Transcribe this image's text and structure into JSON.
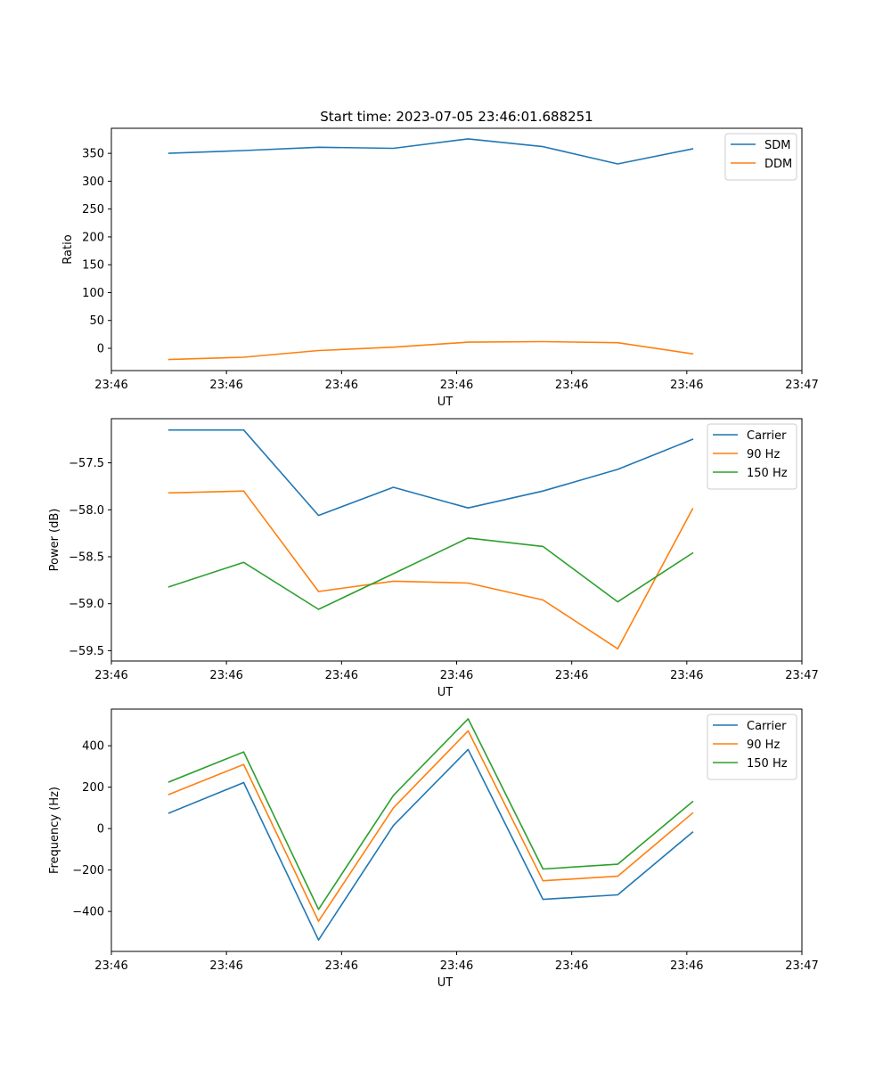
{
  "figure_title": "Start time: 2023-07-05 23:46:01.688251",
  "colors": {
    "blue": "#1f77b4",
    "orange": "#ff7f0e",
    "green": "#2ca02c"
  },
  "chart_data": [
    {
      "type": "line",
      "title": "Start time: 2023-07-05 23:46:01.688251",
      "xlabel": "UT",
      "ylabel": "Ratio",
      "x": [
        0.5,
        1.15,
        1.8,
        2.45,
        3.1,
        3.75,
        4.4,
        5.05
      ],
      "xlim": [
        0,
        6
      ],
      "xticks": [
        0,
        1,
        2,
        3,
        4,
        5,
        6
      ],
      "xtick_labels": [
        "23:46",
        "23:46",
        "23:46",
        "23:46",
        "23:46",
        "23:46",
        "23:47"
      ],
      "ylim": [
        -40,
        395
      ],
      "yticks": [
        0,
        50,
        100,
        150,
        200,
        250,
        300,
        350
      ],
      "ytick_labels": [
        "0",
        "50",
        "100",
        "150",
        "200",
        "250",
        "300",
        "350"
      ],
      "legend_position": "top-right",
      "series": [
        {
          "name": "SDM",
          "color": "#1f77b4",
          "values": [
            350,
            355,
            361,
            359,
            376,
            362,
            331,
            358
          ]
        },
        {
          "name": "DDM",
          "color": "#ff7f0e",
          "values": [
            -20,
            -16,
            -4,
            2,
            11,
            12,
            10,
            -10
          ]
        }
      ]
    },
    {
      "type": "line",
      "title": "",
      "xlabel": "UT",
      "ylabel": "Power (dB)",
      "x": [
        0.5,
        1.15,
        1.8,
        2.45,
        3.1,
        3.75,
        4.4,
        5.05
      ],
      "xlim": [
        0,
        6
      ],
      "xticks": [
        0,
        1,
        2,
        3,
        4,
        5,
        6
      ],
      "xtick_labels": [
        "23:46",
        "23:46",
        "23:46",
        "23:46",
        "23:46",
        "23:46",
        "23:47"
      ],
      "ylim": [
        -59.61,
        -57.03
      ],
      "yticks": [
        -57.5,
        -58.0,
        -58.5,
        -59.0,
        -59.5
      ],
      "ytick_labels": [
        "−57.5",
        "−58.0",
        "−58.5",
        "−59.0",
        "−59.5"
      ],
      "legend_position": "top-right",
      "series": [
        {
          "name": "Carrier",
          "color": "#1f77b4",
          "values": [
            -57.15,
            -57.15,
            -58.06,
            -57.76,
            -57.98,
            -57.8,
            -57.57,
            -57.25
          ]
        },
        {
          "name": "90 Hz",
          "color": "#ff7f0e",
          "values": [
            -57.82,
            -57.8,
            -58.87,
            -58.76,
            -58.78,
            -58.96,
            -59.48,
            -57.99
          ]
        },
        {
          "name": "150 Hz",
          "color": "#2ca02c",
          "values": [
            -58.82,
            -58.56,
            -59.06,
            -58.68,
            -58.3,
            -58.39,
            -58.98,
            -58.46
          ]
        }
      ]
    },
    {
      "type": "line",
      "title": "",
      "xlabel": "UT",
      "ylabel": "Frequency (Hz)",
      "x": [
        0.5,
        1.15,
        1.8,
        2.45,
        3.1,
        3.75,
        4.4,
        5.05
      ],
      "xlim": [
        0,
        6
      ],
      "xticks": [
        0,
        1,
        2,
        3,
        4,
        5,
        6
      ],
      "xtick_labels": [
        "23:46",
        "23:46",
        "23:46",
        "23:46",
        "23:46",
        "23:46",
        "23:47"
      ],
      "ylim": [
        -593,
        577
      ],
      "yticks": [
        400,
        200,
        0,
        -200,
        -400
      ],
      "ytick_labels": [
        "400",
        "200",
        "0",
        "−200",
        "−400"
      ],
      "legend_position": "top-right",
      "series": [
        {
          "name": "Carrier",
          "color": "#1f77b4",
          "values": [
            75,
            222,
            -538,
            15,
            382,
            -342,
            -320,
            -17
          ]
        },
        {
          "name": "90 Hz",
          "color": "#ff7f0e",
          "values": [
            165,
            310,
            -447,
            100,
            472,
            -252,
            -230,
            75
          ]
        },
        {
          "name": "150 Hz",
          "color": "#2ca02c",
          "values": [
            225,
            370,
            -390,
            160,
            530,
            -195,
            -172,
            130
          ]
        }
      ]
    }
  ]
}
